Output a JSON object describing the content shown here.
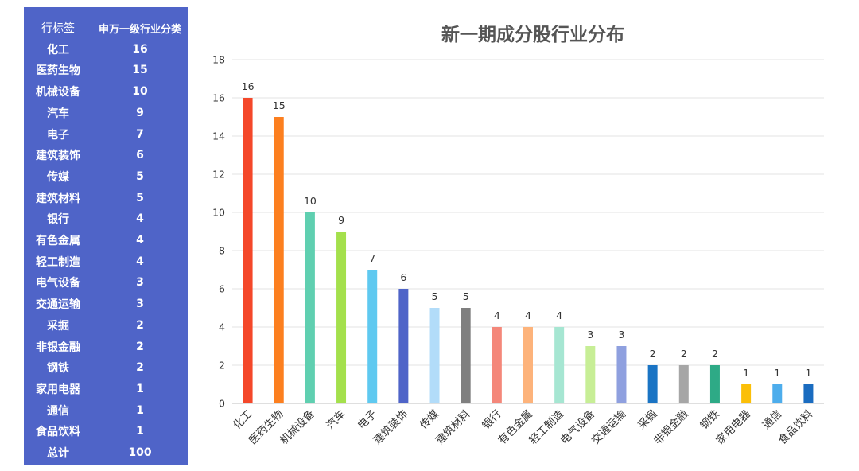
{
  "table": {
    "header_label": "行标签",
    "header_value": "申万一级行业分类",
    "rows": [
      {
        "label": "化工",
        "value": "16"
      },
      {
        "label": "医药生物",
        "value": "15"
      },
      {
        "label": "机械设备",
        "value": "10"
      },
      {
        "label": "汽车",
        "value": "9"
      },
      {
        "label": "电子",
        "value": "7"
      },
      {
        "label": "建筑装饰",
        "value": "6"
      },
      {
        "label": "传媒",
        "value": "5"
      },
      {
        "label": "建筑材料",
        "value": "5"
      },
      {
        "label": "银行",
        "value": "4"
      },
      {
        "label": "有色金属",
        "value": "4"
      },
      {
        "label": "轻工制造",
        "value": "4"
      },
      {
        "label": "电气设备",
        "value": "3"
      },
      {
        "label": "交通运输",
        "value": "3"
      },
      {
        "label": "采掘",
        "value": "2"
      },
      {
        "label": "非银金融",
        "value": "2"
      },
      {
        "label": "钢铁",
        "value": "2"
      },
      {
        "label": "家用电器",
        "value": "1"
      },
      {
        "label": "通信",
        "value": "1"
      },
      {
        "label": "食品饮料",
        "value": "1"
      }
    ],
    "total_label": "总计",
    "total_value": "100",
    "background_color": "#4f64c8"
  },
  "chart_data": {
    "type": "bar",
    "title": "新一期成分股行业分布",
    "categories": [
      "化工",
      "医药生物",
      "机械设备",
      "汽车",
      "电子",
      "建筑装饰",
      "传媒",
      "建筑材料",
      "银行",
      "有色金属",
      "轻工制造",
      "电气设备",
      "交通运输",
      "采掘",
      "非银金融",
      "钢铁",
      "家用电器",
      "通信",
      "食品饮料"
    ],
    "values": [
      16,
      15,
      10,
      9,
      7,
      6,
      5,
      5,
      4,
      4,
      4,
      3,
      3,
      2,
      2,
      2,
      1,
      1,
      1
    ],
    "colors": [
      "#f4482a",
      "#fc7f1f",
      "#5fcfb0",
      "#a4e04c",
      "#5fc9f0",
      "#4f64c8",
      "#b2dcf9",
      "#7f7f7f",
      "#f4877a",
      "#fdb37b",
      "#a6e6d2",
      "#c7ee96",
      "#8fa0df",
      "#1a74c4",
      "#a6a6a6",
      "#2eaa86",
      "#fbbf08",
      "#4dadec",
      "#1a6cc0"
    ],
    "ylim": [
      0,
      18
    ],
    "yticks": [
      "0",
      "2",
      "4",
      "6",
      "8",
      "10",
      "12",
      "14",
      "16",
      "18"
    ],
    "grid": true,
    "xlabel": "",
    "ylabel": ""
  }
}
